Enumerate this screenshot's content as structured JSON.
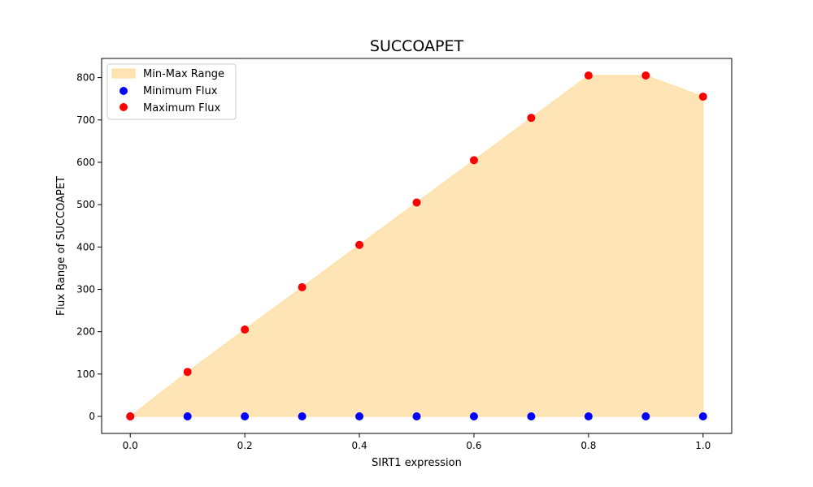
{
  "chart_data": {
    "type": "scatter",
    "title": "SUCCOAPET",
    "xlabel": "SIRT1 expression",
    "ylabel": "Flux Range of SUCCOAPET",
    "xlim": [
      -0.05,
      1.05
    ],
    "ylim": [
      -40.25,
      845.25
    ],
    "grid": false,
    "legend_position": "top-left",
    "x": [
      0.0,
      0.1,
      0.2,
      0.3,
      0.4,
      0.5,
      0.6,
      0.7,
      0.8,
      0.9,
      1.0
    ],
    "xticks": [
      0.0,
      0.2,
      0.4,
      0.6,
      0.8,
      1.0
    ],
    "xtick_labels": [
      "0.0",
      "0.2",
      "0.4",
      "0.6",
      "0.8",
      "1.0"
    ],
    "yticks": [
      0,
      100,
      200,
      300,
      400,
      500,
      600,
      700,
      800
    ],
    "ytick_labels": [
      "0",
      "100",
      "200",
      "300",
      "400",
      "500",
      "600",
      "700",
      "800"
    ],
    "series": [
      {
        "name": "Min-Max Range",
        "kind": "area",
        "color": "#FFE4B5",
        "edge_color": "#FFDD9C",
        "lower": [
          0,
          0,
          0,
          0,
          0,
          0,
          0,
          0,
          0,
          0,
          0
        ],
        "upper": [
          0,
          105,
          205,
          305,
          405,
          505,
          605,
          705,
          805,
          805,
          755
        ]
      },
      {
        "name": "Minimum Flux",
        "kind": "scatter",
        "color": "#0000FF",
        "values": [
          0,
          0,
          0,
          0,
          0,
          0,
          0,
          0,
          0,
          0,
          0
        ]
      },
      {
        "name": "Maximum Flux",
        "kind": "scatter",
        "color": "#FF0000",
        "values": [
          0,
          105,
          205,
          305,
          405,
          505,
          605,
          705,
          805,
          805,
          755
        ]
      }
    ]
  }
}
